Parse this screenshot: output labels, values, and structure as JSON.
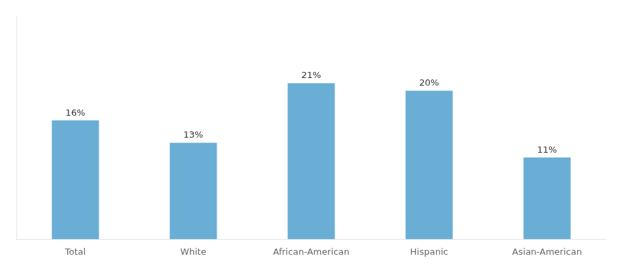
{
  "chart_data": {
    "type": "bar",
    "categories": [
      "Total",
      "White",
      "African-American",
      "Hispanic",
      "Asian-American"
    ],
    "values": [
      16,
      13,
      21,
      20,
      11
    ],
    "value_labels": [
      "16%",
      "13%",
      "21%",
      "20%",
      "11%"
    ],
    "color": "#6aaed6",
    "ylim": [
      0,
      30
    ],
    "yticks": [],
    "grid": false,
    "data_labels": true,
    "tick_labels": "x"
  }
}
